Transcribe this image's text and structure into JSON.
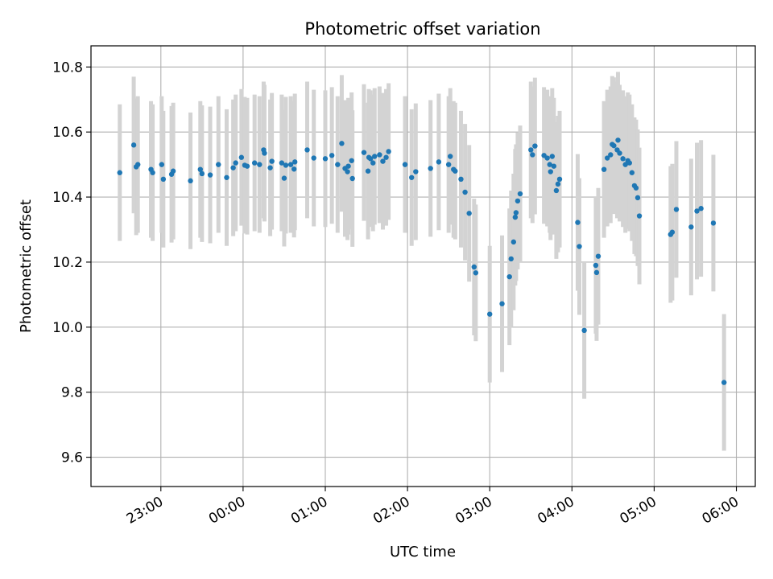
{
  "chart_data": {
    "type": "scatter",
    "title": "Photometric offset variation",
    "xlabel": "UTC time",
    "ylabel": "Photometric offset",
    "x_unit": "hours relative to 00:00 UTC",
    "xlim": [
      -1.85,
      6.23
    ],
    "ylim": [
      9.51,
      10.865
    ],
    "grid": true,
    "x_ticks": [
      {
        "value": -1,
        "label": "23:00"
      },
      {
        "value": 0,
        "label": "00:00"
      },
      {
        "value": 1,
        "label": "01:00"
      },
      {
        "value": 2,
        "label": "02:00"
      },
      {
        "value": 3,
        "label": "03:00"
      },
      {
        "value": 4,
        "label": "04:00"
      },
      {
        "value": 5,
        "label": "05:00"
      },
      {
        "value": 6,
        "label": "06:00"
      }
    ],
    "y_ticks": [
      {
        "value": 9.6,
        "label": "9.6"
      },
      {
        "value": 9.8,
        "label": "9.8"
      },
      {
        "value": 10.0,
        "label": "10.0"
      },
      {
        "value": 10.2,
        "label": "10.2"
      },
      {
        "value": 10.4,
        "label": "10.4"
      },
      {
        "value": 10.6,
        "label": "10.6"
      },
      {
        "value": 10.8,
        "label": "10.8"
      }
    ],
    "colors": {
      "points": "#1f77b4",
      "error_bars": "#d3d3d3",
      "grid": "#b0b0b0",
      "axes": "#000000"
    },
    "series": [
      {
        "name": "offset",
        "error_bar_halfwidth": 0.21,
        "x": [
          -1.5,
          -1.33,
          -1.3,
          -1.28,
          -1.12,
          -1.1,
          -0.99,
          -0.97,
          -0.87,
          -0.85,
          -0.64,
          -0.52,
          -0.5,
          -0.4,
          -0.3,
          -0.2,
          -0.12,
          -0.09,
          -0.02,
          0.02,
          0.05,
          0.14,
          0.2,
          0.25,
          0.26,
          0.33,
          0.35,
          0.47,
          0.5,
          0.52,
          0.58,
          0.62,
          0.63,
          0.78,
          0.86,
          1.0,
          1.08,
          1.15,
          1.2,
          1.24,
          1.27,
          1.28,
          1.32,
          1.33,
          1.47,
          1.52,
          1.53,
          1.55,
          1.58,
          1.6,
          1.66,
          1.7,
          1.74,
          1.77,
          1.97,
          2.05,
          2.1,
          2.28,
          2.38,
          2.5,
          2.52,
          2.56,
          2.58,
          2.65,
          2.7,
          2.75,
          2.81,
          2.83,
          3.0,
          3.15,
          3.24,
          3.26,
          3.29,
          3.31,
          3.32,
          3.34,
          3.37,
          3.5,
          3.52,
          3.55,
          3.66,
          3.7,
          3.73,
          3.74,
          3.76,
          3.78,
          3.81,
          3.83,
          3.85,
          4.07,
          4.09,
          4.15,
          4.29,
          4.3,
          4.32,
          4.39,
          4.43,
          4.47,
          4.49,
          4.51,
          4.55,
          4.56,
          4.58,
          4.62,
          4.65,
          4.68,
          4.7,
          4.73,
          4.76,
          4.78,
          4.8,
          4.82,
          5.2,
          5.22,
          5.27,
          5.45,
          5.52,
          5.57,
          5.72,
          5.85
        ],
        "y": [
          10.475,
          10.56,
          10.493,
          10.5,
          10.485,
          10.475,
          10.5,
          10.455,
          10.47,
          10.48,
          10.45,
          10.485,
          10.472,
          10.468,
          10.5,
          10.46,
          10.49,
          10.505,
          10.522,
          10.498,
          10.495,
          10.505,
          10.5,
          10.545,
          10.535,
          10.49,
          10.51,
          10.505,
          10.458,
          10.498,
          10.5,
          10.486,
          10.508,
          10.545,
          10.52,
          10.518,
          10.528,
          10.5,
          10.565,
          10.488,
          10.478,
          10.495,
          10.512,
          10.457,
          10.537,
          10.48,
          10.522,
          10.518,
          10.505,
          10.525,
          10.53,
          10.51,
          10.522,
          10.54,
          10.5,
          10.46,
          10.478,
          10.488,
          10.508,
          10.5,
          10.525,
          10.485,
          10.48,
          10.455,
          10.415,
          10.35,
          10.185,
          10.167,
          10.04,
          10.072,
          10.155,
          10.21,
          10.262,
          10.338,
          10.352,
          10.388,
          10.41,
          10.545,
          10.53,
          10.557,
          10.528,
          10.52,
          10.5,
          10.478,
          10.525,
          10.495,
          10.42,
          10.44,
          10.455,
          10.322,
          10.248,
          9.99,
          10.19,
          10.168,
          10.218,
          10.485,
          10.52,
          10.53,
          10.562,
          10.558,
          10.545,
          10.575,
          10.535,
          10.518,
          10.5,
          10.512,
          10.505,
          10.475,
          10.435,
          10.428,
          10.398,
          10.342,
          10.285,
          10.292,
          10.362,
          10.308,
          10.357,
          10.365,
          10.32,
          9.83
        ]
      }
    ]
  }
}
